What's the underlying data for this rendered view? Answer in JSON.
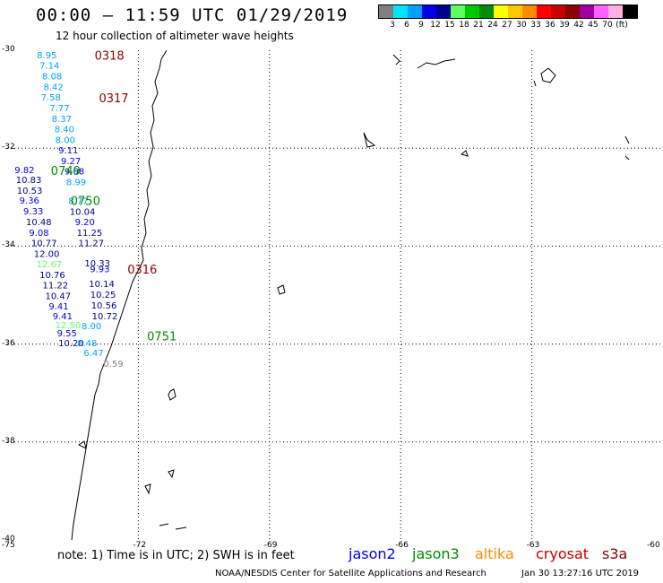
{
  "header": {
    "title": "00:00 – 11:59 UTC 01/29/2019",
    "subtitle": "12 hour collection of altimeter wave heights"
  },
  "legend": {
    "colors": [
      "#808080",
      "#00e5ff",
      "#00a0ff",
      "#0000e6",
      "#00008c",
      "#60ff60",
      "#00c800",
      "#008c00",
      "#ffff00",
      "#ffc800",
      "#ff8c00",
      "#ff0000",
      "#c80000",
      "#8c0000",
      "#a000a0",
      "#ff60ff",
      "#ffb0e0",
      "#000000"
    ],
    "labels": [
      "3",
      "6",
      "9",
      "12",
      "15",
      "18",
      "21",
      "24",
      "27",
      "30",
      "33",
      "36",
      "39",
      "42",
      "45",
      "70",
      "(ft)"
    ]
  },
  "axes": {
    "lat_labels": [
      "-30",
      "-32",
      "-34",
      "-36",
      "-38",
      "-40"
    ],
    "lon_labels": [
      "-75",
      "-72",
      "-69",
      "-66",
      "-63",
      "-60"
    ]
  },
  "observations": [
    {
      "v": "8.95",
      "lat": -30.09,
      "lon": -74.32,
      "c": "#00a0ff"
    },
    {
      "v": "7.14",
      "lat": -30.3,
      "lon": -74.26,
      "c": "#00a0ff"
    },
    {
      "v": "8.08",
      "lat": -30.52,
      "lon": -74.2,
      "c": "#00a0ff"
    },
    {
      "v": "8.42",
      "lat": -30.74,
      "lon": -74.17,
      "c": "#00a0ff"
    },
    {
      "v": "7.58",
      "lat": -30.95,
      "lon": -74.23,
      "c": "#00a0ff"
    },
    {
      "v": "7.77",
      "lat": -31.17,
      "lon": -74.03,
      "c": "#00a0ff"
    },
    {
      "v": "8.37",
      "lat": -31.39,
      "lon": -73.98,
      "c": "#00a0ff"
    },
    {
      "v": "8.40",
      "lat": -31.6,
      "lon": -73.92,
      "c": "#00a0ff"
    },
    {
      "v": "8.00",
      "lat": -31.82,
      "lon": -73.9,
      "c": "#00a0ff"
    },
    {
      "v": "9.11",
      "lat": -32.03,
      "lon": -73.83,
      "c": "#0000e6"
    },
    {
      "v": "9.27",
      "lat": -32.25,
      "lon": -73.77,
      "c": "#0000e6"
    },
    {
      "v": "9.82",
      "lat": -32.44,
      "lon": -74.83,
      "c": "#0000e6"
    },
    {
      "v": "9.08",
      "lat": -32.46,
      "lon": -73.69,
      "c": "#0000e6"
    },
    {
      "v": "10.83",
      "lat": -32.64,
      "lon": -74.8,
      "c": "#00008c"
    },
    {
      "v": "8.99",
      "lat": -32.68,
      "lon": -73.65,
      "c": "#00a0ff"
    },
    {
      "v": "10.53",
      "lat": -32.86,
      "lon": -74.78,
      "c": "#00008c"
    },
    {
      "v": "8.77",
      "lat": -33.07,
      "lon": -73.6,
      "c": "#00a0ff"
    },
    {
      "v": "9.36",
      "lat": -33.06,
      "lon": -74.72,
      "c": "#0000e6"
    },
    {
      "v": "10.04",
      "lat": -33.29,
      "lon": -73.57,
      "c": "#00008c"
    },
    {
      "v": "9.33",
      "lat": -33.28,
      "lon": -74.63,
      "c": "#0000e6"
    },
    {
      "v": "10.48",
      "lat": -33.5,
      "lon": -74.57,
      "c": "#00008c"
    },
    {
      "v": "9.20",
      "lat": -33.5,
      "lon": -73.45,
      "c": "#0000e6"
    },
    {
      "v": "9.08",
      "lat": -33.72,
      "lon": -74.5,
      "c": "#0000e6"
    },
    {
      "v": "11.25",
      "lat": -33.72,
      "lon": -73.41,
      "c": "#00008c"
    },
    {
      "v": "10.77",
      "lat": -33.93,
      "lon": -74.45,
      "c": "#00008c"
    },
    {
      "v": "11.27",
      "lat": -33.93,
      "lon": -73.37,
      "c": "#00008c"
    },
    {
      "v": "12.00",
      "lat": -34.15,
      "lon": -74.39,
      "c": "#00008c"
    },
    {
      "v": "12.67",
      "lat": -34.36,
      "lon": -74.33,
      "c": "#60ff60"
    },
    {
      "v": "10.33",
      "lat": -34.34,
      "lon": -73.23,
      "c": "#00008c"
    },
    {
      "v": "9.93",
      "lat": -34.46,
      "lon": -73.11,
      "c": "#0000e6"
    },
    {
      "v": "10.76",
      "lat": -34.58,
      "lon": -74.26,
      "c": "#00008c"
    },
    {
      "v": "11.22",
      "lat": -34.79,
      "lon": -74.19,
      "c": "#00008c"
    },
    {
      "v": "10.14",
      "lat": -34.76,
      "lon": -73.13,
      "c": "#00008c"
    },
    {
      "v": "10.47",
      "lat": -35.01,
      "lon": -74.13,
      "c": "#00008c"
    },
    {
      "v": "10.25",
      "lat": -34.98,
      "lon": -73.1,
      "c": "#00008c"
    },
    {
      "v": "9.41",
      "lat": -35.22,
      "lon": -74.05,
      "c": "#0000e6"
    },
    {
      "v": "10.56",
      "lat": -35.2,
      "lon": -73.08,
      "c": "#00008c"
    },
    {
      "v": "9.41",
      "lat": -35.42,
      "lon": -73.96,
      "c": "#0000e6"
    },
    {
      "v": "10.72",
      "lat": -35.42,
      "lon": -73.06,
      "c": "#00008c"
    },
    {
      "v": "12.50",
      "lat": -35.6,
      "lon": -73.9,
      "c": "#60ff60"
    },
    {
      "v": "8.00",
      "lat": -35.62,
      "lon": -73.3,
      "c": "#00a0ff"
    },
    {
      "v": "9.55",
      "lat": -35.77,
      "lon": -73.86,
      "c": "#0000e6"
    },
    {
      "v": "10.20",
      "lat": -35.97,
      "lon": -73.83,
      "c": "#00008c"
    },
    {
      "v": "8.48",
      "lat": -35.97,
      "lon": -73.4,
      "c": "#00a0ff"
    },
    {
      "v": "6.47",
      "lat": -36.17,
      "lon": -73.25,
      "c": "#00a0ff"
    },
    {
      "v": "0.59",
      "lat": -36.39,
      "lon": -72.8,
      "c": "#808080"
    }
  ],
  "pass_times": [
    {
      "t": "0318",
      "lat": -30.1,
      "lon": -73.0,
      "c": "#8c0000"
    },
    {
      "t": "0317",
      "lat": -30.97,
      "lon": -72.9,
      "c": "#8c0000"
    },
    {
      "t": "0749",
      "lat": -32.45,
      "lon": -74.0,
      "c": "#008c00"
    },
    {
      "t": "0750",
      "lat": -33.07,
      "lon": -73.55,
      "c": "#008c00"
    },
    {
      "t": "0316",
      "lat": -34.47,
      "lon": -72.25,
      "c": "#8c0000"
    },
    {
      "t": "0751",
      "lat": -35.83,
      "lon": -71.8,
      "c": "#008c00"
    }
  ],
  "note": "note:  1) Time is in UTC;  2) SWH is in feet",
  "satellites": [
    {
      "name": "jason2",
      "color": "#0000e6"
    },
    {
      "name": "jason3",
      "color": "#008c00"
    },
    {
      "name": "altika",
      "color": "#ff8c00"
    },
    {
      "name": "cryosat",
      "color": "#c80000"
    },
    {
      "name": "s3a",
      "color": "#8c0000"
    }
  ],
  "footer": "NOAA/NESDIS Center for Satellite Applications and Research",
  "timestamp": "Jan 30 13:27:16 UTC 2019"
}
